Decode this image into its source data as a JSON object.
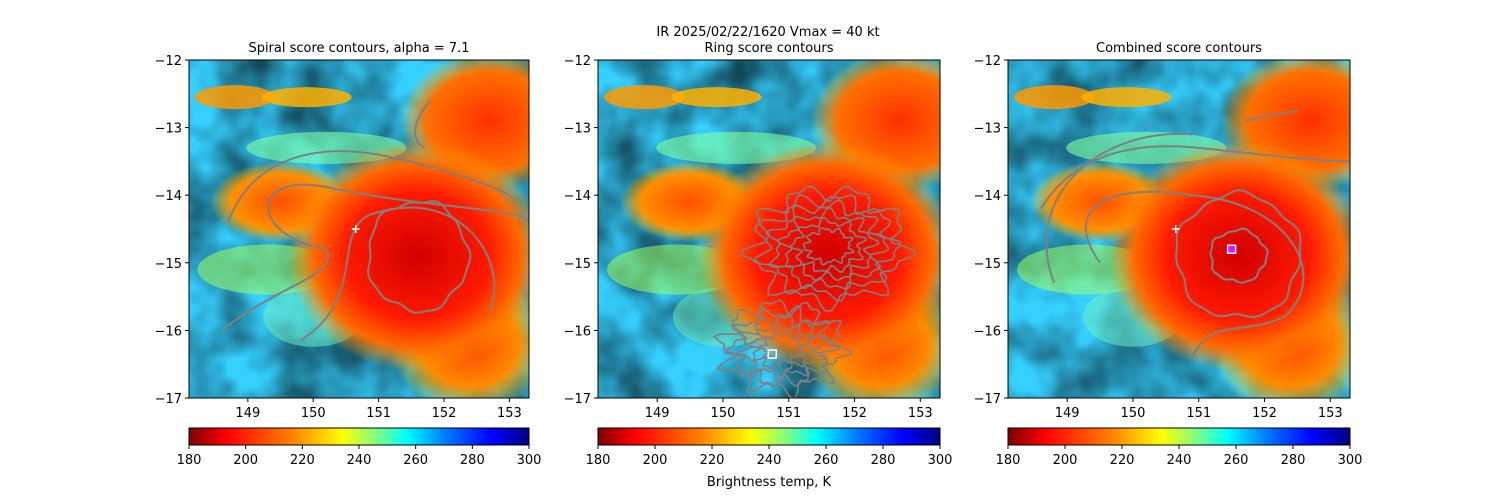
{
  "chart_data": {
    "type": "heatmap",
    "suptitle": "IR  2025/02/22/1620    Vmax = 40 kt",
    "colors": {
      "contour": "#808080",
      "center_marker": "#ffffff",
      "best_marker_inner": "#ff00ff",
      "colormap": [
        "#800000",
        "#ff0000",
        "#ff8000",
        "#ffff00",
        "#80ff80",
        "#00ffff",
        "#0080ff",
        "#0000ff",
        "#000080"
      ]
    },
    "colorbar": {
      "label": "Brightness temp, K",
      "range": [
        180,
        300
      ],
      "ticks": [
        "180",
        "200",
        "220",
        "240",
        "260",
        "280",
        "300"
      ]
    },
    "panels": [
      {
        "title": "Spiral score contours, alpha =  7.1",
        "xlim": [
          148.1,
          153.3
        ],
        "ylim": [
          -17,
          -12
        ],
        "xticks": [
          "149",
          "150",
          "151",
          "152",
          "153"
        ],
        "yticks": [
          "−12",
          "−13",
          "−14",
          "−15",
          "−16",
          "−17"
        ],
        "storm_center": {
          "lon": 151.6,
          "lat": -14.9
        },
        "first_guess": {
          "lon": 150.65,
          "lat": -14.5
        },
        "best_estimate": null
      },
      {
        "title": "Ring score contours",
        "xlim": [
          148.1,
          153.3
        ],
        "ylim": [
          -17,
          -12
        ],
        "xticks": [
          "149",
          "150",
          "151",
          "152",
          "153"
        ],
        "yticks": [
          "−12",
          "−13",
          "−14",
          "−15",
          "−16",
          "−17"
        ],
        "storm_center": {
          "lon": 151.6,
          "lat": -14.9
        },
        "first_guess": null,
        "best_estimate": {
          "lon": 150.75,
          "lat": -16.35
        }
      },
      {
        "title": "Combined score contours",
        "xlim": [
          148.1,
          153.3
        ],
        "ylim": [
          -17,
          -12
        ],
        "xticks": [
          "149",
          "150",
          "151",
          "152",
          "153"
        ],
        "yticks": [
          "−12",
          "−13",
          "−14",
          "−15",
          "−16",
          "−17"
        ],
        "storm_center": {
          "lon": 151.6,
          "lat": -14.9
        },
        "first_guess": {
          "lon": 150.65,
          "lat": -14.5
        },
        "best_estimate": {
          "lon": 151.5,
          "lat": -14.8
        }
      }
    ]
  }
}
